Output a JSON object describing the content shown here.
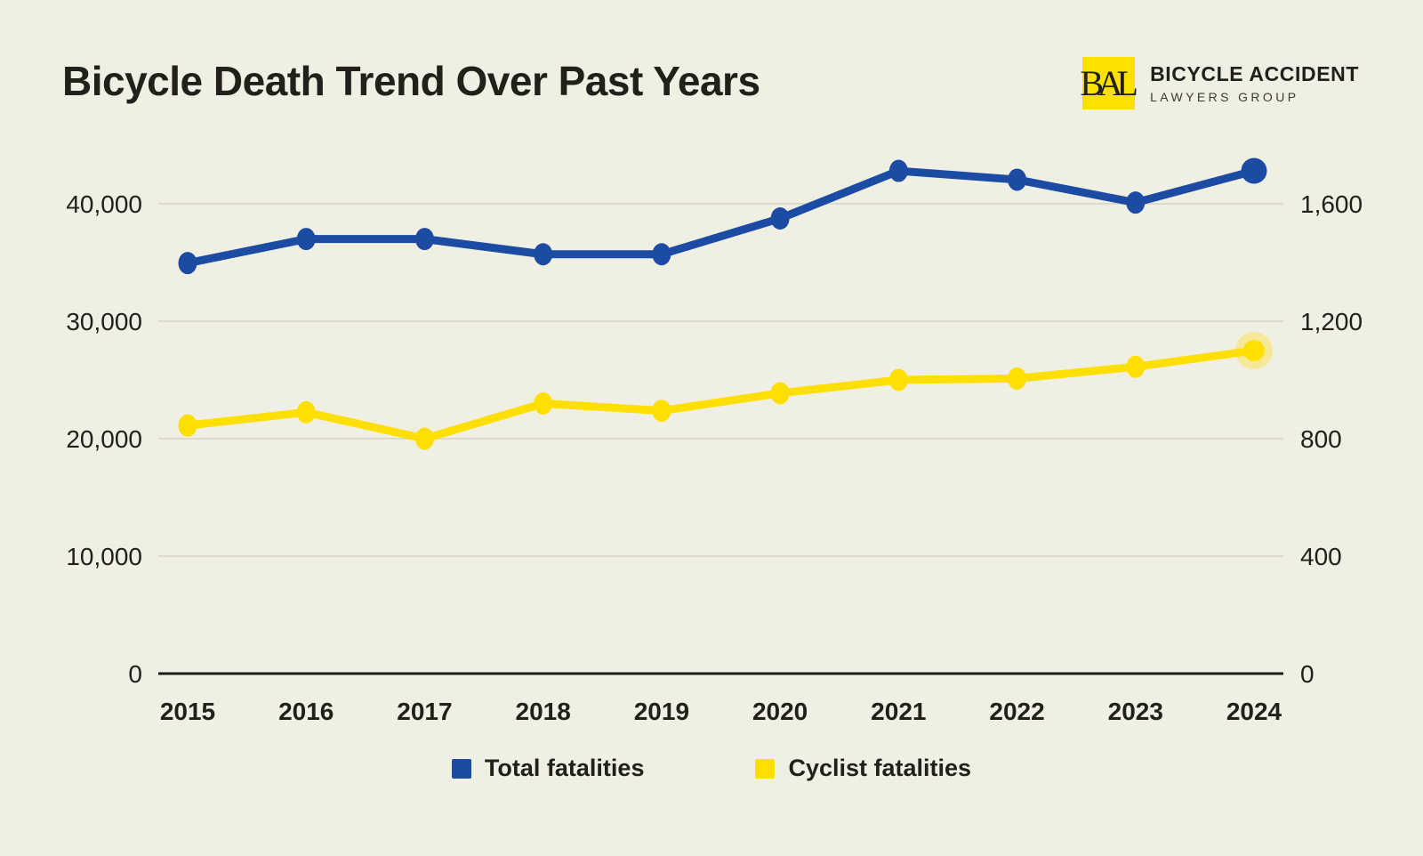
{
  "page": {
    "background_color": "#f0efe4",
    "text_color": "#21201b",
    "grid_color": "#dcdacb",
    "axis_color": "#1d1c17"
  },
  "header": {
    "title": "Bicycle Death Trend Over Past Years",
    "logo": {
      "monogram": "BAL",
      "square_color": "#fbe000",
      "name_line1": "BICYCLE ACCIDENT",
      "name_line2": "LAWYERS GROUP"
    }
  },
  "chart_data": {
    "type": "line",
    "title": "Bicycle Death Trend Over Past Years",
    "x": [
      "2015",
      "2016",
      "2017",
      "2018",
      "2019",
      "2020",
      "2021",
      "2022",
      "2023",
      "2024"
    ],
    "series": [
      {
        "name": "Total fatalities",
        "axis": "left",
        "color": "#1b4ba3",
        "values": [
          34950,
          37000,
          37000,
          35700,
          35700,
          38750,
          42800,
          42050,
          40100,
          42800
        ]
      },
      {
        "name": "Cyclist fatalities",
        "axis": "right",
        "color": "#ffdf00",
        "values": [
          845,
          890,
          800,
          920,
          895,
          955,
          1000,
          1005,
          1045,
          1100
        ]
      }
    ],
    "left_axis": {
      "ticks": [
        0,
        10000,
        20000,
        30000,
        40000
      ],
      "top_tick": 40000
    },
    "right_axis": {
      "ticks": [
        0,
        400,
        800,
        1200,
        1600
      ],
      "top_tick": 1600
    },
    "grid": true,
    "legend_position": "bottom",
    "highlight_last_point": true
  },
  "legend": {
    "items": [
      {
        "label": "Total fatalities",
        "color": "#1b4ba3"
      },
      {
        "label": "Cyclist fatalities",
        "color": "#ffdf00"
      }
    ]
  }
}
